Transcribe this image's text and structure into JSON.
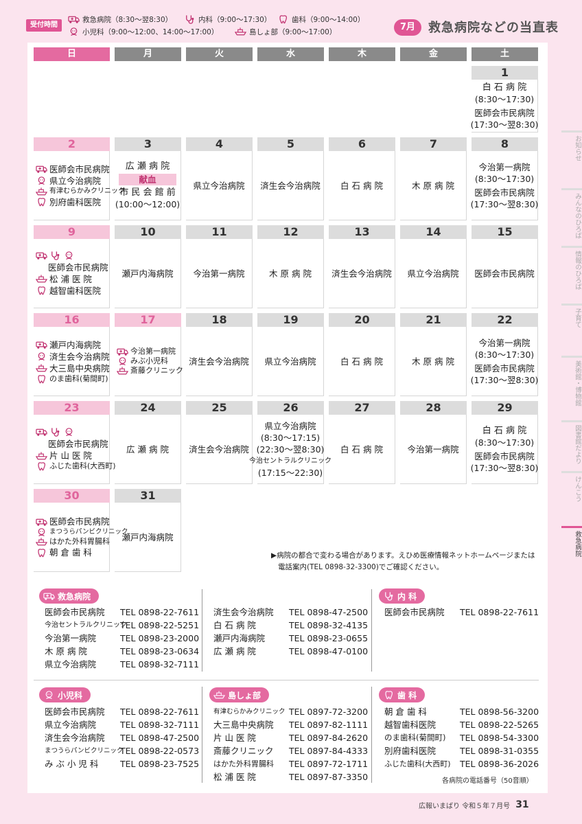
{
  "header": {
    "reception_label": "受付時間",
    "hours": [
      {
        "icon": "ambulance-icon",
        "text": "救急病院（8:30〜翌8:30）"
      },
      {
        "icon": "stethoscope-icon",
        "text": "内科（9:00〜17:30）"
      },
      {
        "icon": "tooth-icon",
        "text": "歯科（9:00〜14:00）"
      },
      {
        "icon": "child-icon",
        "text": "小児科（9:00〜12:00、14:00〜17:00）"
      },
      {
        "icon": "ship-icon",
        "text": "島しょ部（9:00〜17:00）"
      }
    ],
    "month": "7月",
    "title": "救急病院などの当直表"
  },
  "weekdays": [
    "日",
    "月",
    "火",
    "水",
    "木",
    "金",
    "土"
  ],
  "calendar": [
    {
      "day": "1",
      "lines": [
        "白 石 病 院",
        "(8:30〜17:30)",
        "医師会市民病院",
        "(17:30〜翌8:30)"
      ]
    },
    {
      "day": "2",
      "lines": [
        "医師会市民病院",
        "県立今治病院",
        "有津むらかみクリニック",
        "別府歯科医院"
      ]
    },
    {
      "day": "3",
      "lines": [
        "広 瀬 病 院",
        "献血",
        "市 民 会 館 前",
        "(10:00〜12:00)"
      ]
    },
    {
      "day": "4",
      "lines": [
        "県立今治病院"
      ]
    },
    {
      "day": "5",
      "lines": [
        "済生会今治病院"
      ]
    },
    {
      "day": "6",
      "lines": [
        "白 石 病 院"
      ]
    },
    {
      "day": "7",
      "lines": [
        "木 原 病 院"
      ]
    },
    {
      "day": "8",
      "lines": [
        "今治第一病院",
        "(8:30〜17:30)",
        "医師会市民病院",
        "(17:30〜翌8:30)"
      ]
    },
    {
      "day": "9",
      "lines": [
        "医師会市民病院",
        "松 浦 医 院",
        "越智歯科医院"
      ]
    },
    {
      "day": "10",
      "lines": [
        "瀬戸内海病院"
      ]
    },
    {
      "day": "11",
      "lines": [
        "今治第一病院"
      ]
    },
    {
      "day": "12",
      "lines": [
        "木 原 病 院"
      ]
    },
    {
      "day": "13",
      "lines": [
        "済生会今治病院"
      ]
    },
    {
      "day": "14",
      "lines": [
        "県立今治病院"
      ]
    },
    {
      "day": "15",
      "lines": [
        "医師会市民病院"
      ]
    },
    {
      "day": "16",
      "lines": [
        "瀬戸内海病院",
        "済生会今治病院",
        "大三島中央病院",
        "のま歯科(菊間町)"
      ]
    },
    {
      "day": "17",
      "lines": [
        "今治第一病院",
        "みぶ小児科",
        "斎藤クリニック"
      ]
    },
    {
      "day": "18",
      "lines": [
        "済生会今治病院"
      ]
    },
    {
      "day": "19",
      "lines": [
        "県立今治病院"
      ]
    },
    {
      "day": "20",
      "lines": [
        "白 石 病 院"
      ]
    },
    {
      "day": "21",
      "lines": [
        "木 原 病 院"
      ]
    },
    {
      "day": "22",
      "lines": [
        "今治第一病院",
        "(8:30〜17:30)",
        "医師会市民病院",
        "(17:30〜翌8:30)"
      ]
    },
    {
      "day": "23",
      "lines": [
        "医師会市民病院",
        "片 山 医 院",
        "ふじた歯科(大西町)"
      ]
    },
    {
      "day": "24",
      "lines": [
        "広 瀬 病 院"
      ]
    },
    {
      "day": "25",
      "lines": [
        "済生会今治病院"
      ]
    },
    {
      "day": "26",
      "lines": [
        "県立今治病院",
        "(8:30〜17:15)",
        "(22:30〜翌8:30)",
        "今治セントラルクリニック",
        "(17:15〜22:30)"
      ]
    },
    {
      "day": "27",
      "lines": [
        "白 石 病 院"
      ]
    },
    {
      "day": "28",
      "lines": [
        "今治第一病院"
      ]
    },
    {
      "day": "29",
      "lines": [
        "白 石 病 院",
        "(8:30〜17:30)",
        "医師会市民病院",
        "(17:30〜翌8:30)"
      ]
    },
    {
      "day": "30",
      "lines": [
        "医師会市民病院",
        "まつうらパンビクリニック",
        "はかた外科胃腸科",
        "朝 倉 歯 科"
      ]
    },
    {
      "day": "31",
      "lines": [
        "瀬戸内海病院"
      ]
    }
  ],
  "note": [
    "▶病院の都合で変わる場合があります。えひめ医療情報ネットホームページまたは",
    "電話案内(TEL 0898-32-3300)でご確認ください。"
  ],
  "directory": {
    "emergency": {
      "label": "救急病院",
      "col1": [
        {
          "name": "医師会市民病院",
          "tel": "TEL 0898-22-7611"
        },
        {
          "name": "今治セントラルクリニック",
          "tel": "TEL 0898-22-5251"
        },
        {
          "name": "今治第一病院",
          "tel": "TEL 0898-23-2000"
        },
        {
          "name": "木 原 病 院",
          "tel": "TEL 0898-23-0634"
        },
        {
          "name": "県立今治病院",
          "tel": "TEL 0898-32-7111"
        }
      ],
      "col2": [
        {
          "name": "済生会今治病院",
          "tel": "TEL 0898-47-2500"
        },
        {
          "name": "白 石 病 院",
          "tel": "TEL 0898-32-4135"
        },
        {
          "name": "瀬戸内海病院",
          "tel": "TEL 0898-23-0655"
        },
        {
          "name": "広 瀬 病 院",
          "tel": "TEL 0898-47-0100"
        }
      ]
    },
    "internal": {
      "label": "内 科",
      "items": [
        {
          "name": "医師会市民病院",
          "tel": "TEL 0898-22-7611"
        }
      ]
    },
    "pediatrics": {
      "label": "小児科",
      "items": [
        {
          "name": "医師会市民病院",
          "tel": "TEL 0898-22-7611"
        },
        {
          "name": "県立今治病院",
          "tel": "TEL 0898-32-7111"
        },
        {
          "name": "済生会今治病院",
          "tel": "TEL 0898-47-2500"
        },
        {
          "name": "まつうらパンビクリニック",
          "tel": "TEL 0898-22-0573"
        },
        {
          "name": "み ぶ 小 児 科",
          "tel": "TEL 0898-23-7525"
        }
      ]
    },
    "islands": {
      "label": "島しょ部",
      "items": [
        {
          "name": "有津むらかみクリニック",
          "tel": "TEL 0897-72-3200"
        },
        {
          "name": "大三島中央病院",
          "tel": "TEL 0897-82-1111"
        },
        {
          "name": "片 山 医 院",
          "tel": "TEL 0897-84-2620"
        },
        {
          "name": "斎藤クリニック",
          "tel": "TEL 0897-84-4333"
        },
        {
          "name": "はかた外科胃腸科",
          "tel": "TEL 0897-72-1711"
        },
        {
          "name": "松 浦 医 院",
          "tel": "TEL 0897-87-3350"
        }
      ]
    },
    "dental": {
      "label": "歯 科",
      "items": [
        {
          "name": "朝 倉 歯 科",
          "tel": "TEL 0898-56-3200"
        },
        {
          "name": "越智歯科医院",
          "tel": "TEL 0898-22-5265"
        },
        {
          "name": "のま歯科(菊間町)",
          "tel": "TEL 0898-54-3300"
        },
        {
          "name": "別府歯科医院",
          "tel": "TEL 0898-31-0355"
        },
        {
          "name": "ふじた歯科(大西町)",
          "tel": "TEL 0898-36-2026"
        }
      ]
    },
    "list_note": "各病院の電話番号（50音順）"
  },
  "footer": {
    "publication": "広報いまばり 令和５年７月号",
    "page": "31"
  },
  "side_tabs": [
    "お知らせ",
    "みんなのひろば",
    "情報のひろば",
    "子育て",
    "美術館・博物館",
    "図書館だより",
    "けんこう",
    "救急病院"
  ],
  "colors": {
    "accent": "#e05594",
    "sunday": "#e46aa0",
    "weekday": "#8a8a8a"
  }
}
